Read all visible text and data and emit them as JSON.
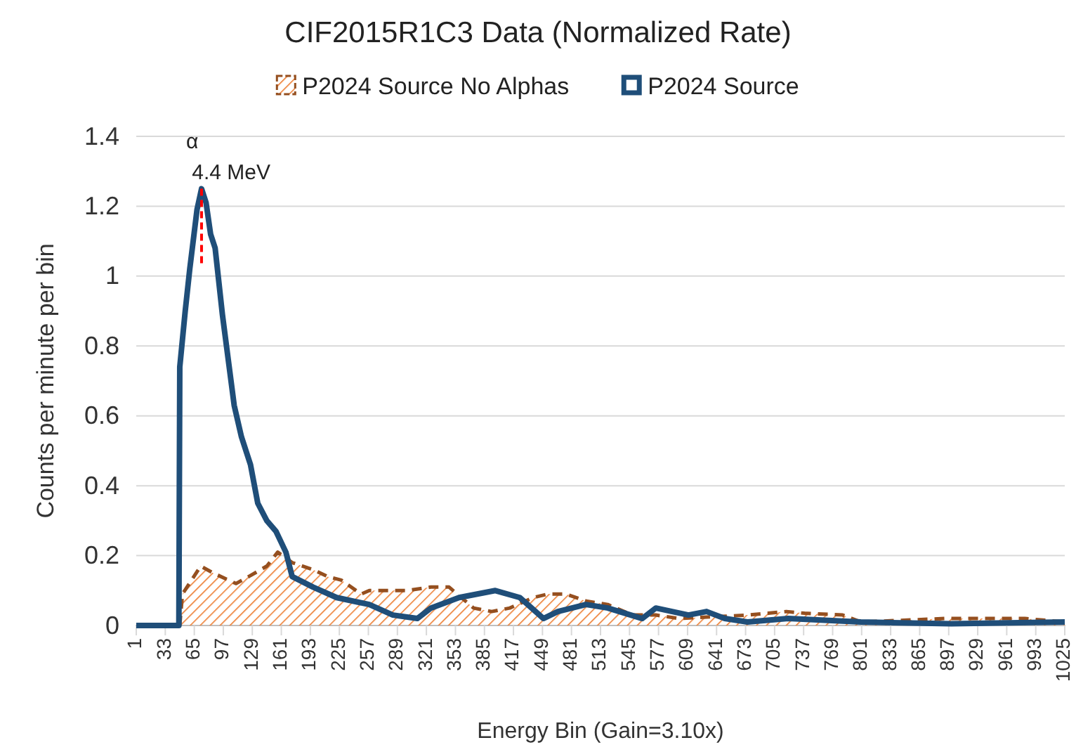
{
  "chart_data": {
    "type": "line",
    "title": "CIF2015R1C3 Data (Normalized Rate)",
    "xlabel": "Energy Bin (Gain=3.10x)",
    "ylabel": "Counts per minute per bin",
    "xlim": [
      1,
      1025
    ],
    "xticks": [
      1,
      33,
      65,
      97,
      129,
      161,
      193,
      225,
      257,
      289,
      321,
      353,
      385,
      417,
      449,
      481,
      513,
      545,
      577,
      609,
      641,
      673,
      705,
      737,
      769,
      801,
      833,
      865,
      897,
      929,
      961,
      993,
      1025
    ],
    "ylim": [
      0,
      1.4
    ],
    "yticks": [
      0,
      0.2,
      0.4,
      0.6,
      0.8,
      1,
      1.2,
      1.4
    ],
    "grid": "y",
    "legend": "top",
    "annotations": [
      {
        "text": "α 4.4 MeV",
        "x": 73,
        "y": 1.25
      }
    ],
    "series": [
      {
        "name": "P2024 Source No Alphas",
        "type": "area",
        "color": "#ed7d31",
        "line_style": "dashed",
        "x": [
          49,
          52,
          72,
          86,
          111,
          125,
          145,
          157,
          173,
          196,
          212,
          227,
          249,
          258,
          280,
          300,
          326,
          346,
          373,
          393,
          413,
          439,
          455,
          475,
          497,
          521,
          548,
          574,
          600,
          676,
          698,
          718,
          738,
          780,
          800,
          893,
          961,
          981,
          1025
        ],
        "values": [
          0,
          0.09,
          0.17,
          0.15,
          0.12,
          0.14,
          0.17,
          0.21,
          0.18,
          0.16,
          0.14,
          0.13,
          0.09,
          0.1,
          0.1,
          0.1,
          0.11,
          0.11,
          0.05,
          0.04,
          0.05,
          0.08,
          0.09,
          0.09,
          0.07,
          0.06,
          0.03,
          0.03,
          0.02,
          0.03,
          0.035,
          0.04,
          0.035,
          0.03,
          0.01,
          0.02,
          0.02,
          0.02,
          0.01
        ]
      },
      {
        "name": "P2024 Source",
        "color": "#1f4e79",
        "x": [
          1,
          48,
          49,
          55,
          60,
          68,
          73,
          78,
          83,
          88,
          96,
          101,
          109,
          117,
          127,
          135,
          145,
          155,
          166,
          173,
          196,
          222,
          258,
          284,
          311,
          326,
          357,
          377,
          397,
          424,
          450,
          466,
          497,
          521,
          559,
          574,
          610,
          630,
          650,
          675,
          720,
          800,
          900,
          1025
        ],
        "values": [
          0,
          0,
          0.74,
          0.9,
          1.02,
          1.19,
          1.25,
          1.21,
          1.12,
          1.08,
          0.89,
          0.79,
          0.63,
          0.54,
          0.46,
          0.35,
          0.3,
          0.27,
          0.21,
          0.14,
          0.11,
          0.08,
          0.06,
          0.03,
          0.02,
          0.05,
          0.08,
          0.09,
          0.1,
          0.08,
          0.02,
          0.04,
          0.06,
          0.05,
          0.02,
          0.05,
          0.03,
          0.04,
          0.02,
          0.01,
          0.02,
          0.01,
          0.005,
          0.01
        ]
      }
    ]
  }
}
